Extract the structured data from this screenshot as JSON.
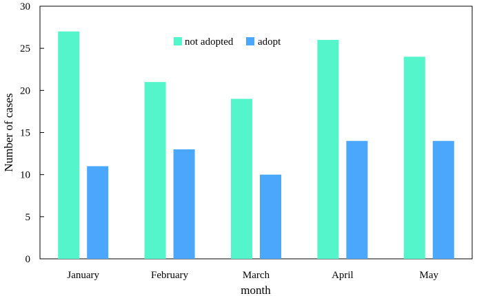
{
  "chart_data": {
    "type": "bar",
    "title": "",
    "xlabel": "month",
    "ylabel": "Number of cases",
    "categories": [
      "January",
      "February",
      "March",
      "April",
      "May"
    ],
    "series": [
      {
        "name": "not adopted",
        "values": [
          27,
          21,
          19,
          26,
          24
        ],
        "color": "#55f5cc"
      },
      {
        "name": "adopt",
        "values": [
          11,
          13,
          10,
          14,
          14
        ],
        "color": "#4ba7fb"
      }
    ],
    "ylim": [
      0,
      30
    ],
    "yticks": [
      "0",
      "5",
      "10",
      "15",
      "20",
      "25",
      "30"
    ],
    "grid": false,
    "legend_position": "top-center"
  }
}
